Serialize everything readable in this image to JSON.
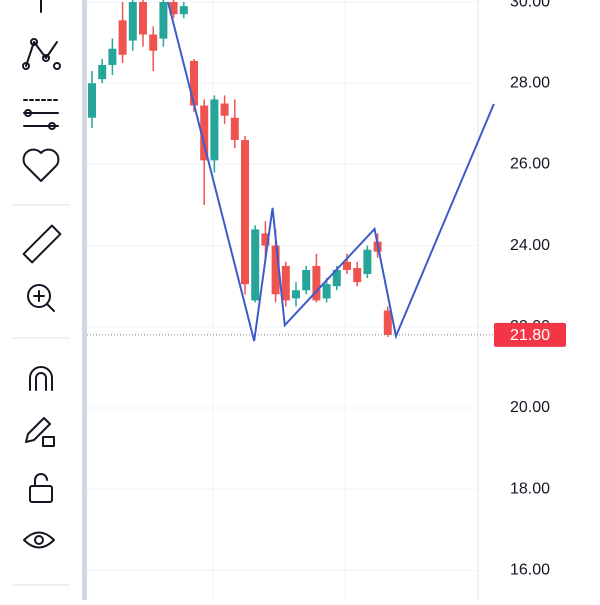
{
  "chart_data": {
    "type": "candlestick",
    "open": [
      27.15,
      28.1,
      28.45,
      29.55,
      29.05,
      30.0,
      29.2,
      29.1,
      30.0,
      29.7,
      28.55,
      27.45,
      26.1,
      27.5,
      27.15,
      26.6,
      22.65,
      24.3,
      24.0,
      23.5,
      22.7,
      22.9,
      23.5,
      22.7,
      23.0,
      23.6,
      23.45,
      23.3,
      24.1,
      22.4
    ],
    "high": [
      28.3,
      28.6,
      29.1,
      30.0,
      30.1,
      30.1,
      29.4,
      30.1,
      30.1,
      30.0,
      28.6,
      27.6,
      27.7,
      27.7,
      27.6,
      26.7,
      24.5,
      24.6,
      24.4,
      23.6,
      23.1,
      23.5,
      23.8,
      23.2,
      23.5,
      23.8,
      23.6,
      24.0,
      24.3,
      22.5
    ],
    "low": [
      26.9,
      28.0,
      28.2,
      28.5,
      28.8,
      28.9,
      28.3,
      28.9,
      29.6,
      29.6,
      27.3,
      25.0,
      25.8,
      27.0,
      26.4,
      22.8,
      22.6,
      23.6,
      22.6,
      22.5,
      22.5,
      22.8,
      22.6,
      22.6,
      22.9,
      23.3,
      23.0,
      23.2,
      23.7,
      21.75
    ],
    "close": [
      28.0,
      28.45,
      28.85,
      28.7,
      30.0,
      29.2,
      28.8,
      30.0,
      29.7,
      29.9,
      27.45,
      26.1,
      27.6,
      27.2,
      26.6,
      23.05,
      24.4,
      24.0,
      22.8,
      22.65,
      22.9,
      23.4,
      22.65,
      23.05,
      23.4,
      23.4,
      23.1,
      23.9,
      23.85,
      21.8
    ],
    "up_color": "#26a69a",
    "down_color": "#ef5350",
    "pattern": {
      "x": [
        7.45,
        15.9,
        17.7,
        18.9,
        27.7,
        29.8,
        39.4
      ],
      "y": [
        30.0,
        21.65,
        24.93,
        22.04,
        24.41,
        21.77,
        27.49
      ],
      "color": "#3d5bc9"
    },
    "ylim": [
      15.27,
      30.05
    ],
    "yticks": [
      {
        "value": 16,
        "label": "16.00"
      },
      {
        "value": 18,
        "label": "18.00"
      },
      {
        "value": 20,
        "label": "20.00"
      },
      {
        "value": 22,
        "label": "22.00"
      },
      {
        "value": 24,
        "label": "24.00"
      },
      {
        "value": 26,
        "label": "26.00"
      },
      {
        "value": 28,
        "label": "28.00"
      },
      {
        "value": 30,
        "label": "30.00"
      }
    ],
    "last_price": {
      "value": 21.8,
      "label": "21.80"
    },
    "last_price_color": "#f23645",
    "grid": true
  }
}
